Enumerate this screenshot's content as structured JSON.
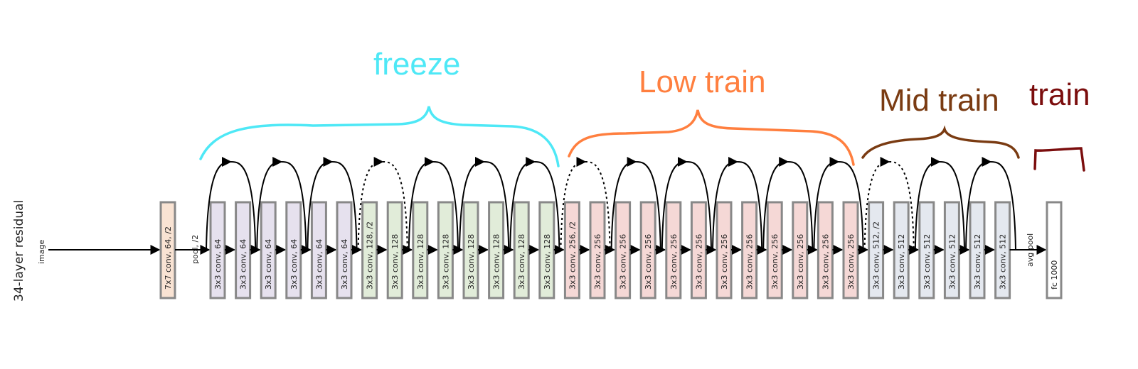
{
  "network_label": "34-layer residual",
  "input_label": "image",
  "pool_label": "pool, /2",
  "avgpool_label": "avg pool",
  "colors": {
    "freeze": "#4ee8f6",
    "low_train": "#ff7f3f",
    "mid_train": "#7a3b12",
    "train": "#7b0d0d",
    "box_first": "#f9e3d3",
    "box_64": "#e6e1ee",
    "box_128": "#e1ecd9",
    "box_256": "#f5d8d6",
    "box_512": "#e4e8ef",
    "box_fc": "#ffffff",
    "box_border": "#888888"
  },
  "groups": [
    {
      "id": "freeze",
      "label": "freeze"
    },
    {
      "id": "low_train",
      "label": "Low train"
    },
    {
      "id": "mid_train",
      "label": "Mid train"
    },
    {
      "id": "train",
      "label": "train"
    }
  ],
  "first_layer": {
    "label": "7x7 conv, 64, /2",
    "color": "box_first"
  },
  "layers": [
    {
      "label": "3x3 conv, 64",
      "color": "box_64"
    },
    {
      "label": "3x3 conv, 64",
      "color": "box_64"
    },
    {
      "label": "3x3 conv, 64",
      "color": "box_64"
    },
    {
      "label": "3x3 conv, 64",
      "color": "box_64"
    },
    {
      "label": "3x3 conv, 64",
      "color": "box_64"
    },
    {
      "label": "3x3 conv, 64",
      "color": "box_64"
    },
    {
      "label": "3x3 conv, 128, /2",
      "color": "box_128"
    },
    {
      "label": "3x3 conv, 128",
      "color": "box_128"
    },
    {
      "label": "3x3 conv, 128",
      "color": "box_128"
    },
    {
      "label": "3x3 conv, 128",
      "color": "box_128"
    },
    {
      "label": "3x3 conv, 128",
      "color": "box_128"
    },
    {
      "label": "3x3 conv, 128",
      "color": "box_128"
    },
    {
      "label": "3x3 conv, 128",
      "color": "box_128"
    },
    {
      "label": "3x3 conv, 128",
      "color": "box_128"
    },
    {
      "label": "3x3 conv, 256, /2",
      "color": "box_256"
    },
    {
      "label": "3x3 conv, 256",
      "color": "box_256"
    },
    {
      "label": "3x3 conv, 256",
      "color": "box_256"
    },
    {
      "label": "3x3 conv, 256",
      "color": "box_256"
    },
    {
      "label": "3x3 conv, 256",
      "color": "box_256"
    },
    {
      "label": "3x3 conv, 256",
      "color": "box_256"
    },
    {
      "label": "3x3 conv, 256",
      "color": "box_256"
    },
    {
      "label": "3x3 conv, 256",
      "color": "box_256"
    },
    {
      "label": "3x3 conv, 256",
      "color": "box_256"
    },
    {
      "label": "3x3 conv, 256",
      "color": "box_256"
    },
    {
      "label": "3x3 conv, 256",
      "color": "box_256"
    },
    {
      "label": "3x3 conv, 256",
      "color": "box_256"
    },
    {
      "label": "3x3 conv, 512, /2",
      "color": "box_512"
    },
    {
      "label": "3x3 conv, 512",
      "color": "box_512"
    },
    {
      "label": "3x3 conv, 512",
      "color": "box_512"
    },
    {
      "label": "3x3 conv, 512",
      "color": "box_512"
    },
    {
      "label": "3x3 conv, 512",
      "color": "box_512"
    },
    {
      "label": "3x3 conv, 512",
      "color": "box_512"
    }
  ],
  "final_layer": {
    "label": "fc 1000",
    "color": "box_fc"
  },
  "skip_connections": [
    {
      "from": 0,
      "dashed": false
    },
    {
      "from": 2,
      "dashed": false
    },
    {
      "from": 4,
      "dashed": false
    },
    {
      "from": 6,
      "dashed": true
    },
    {
      "from": 8,
      "dashed": false
    },
    {
      "from": 10,
      "dashed": false
    },
    {
      "from": 12,
      "dashed": false
    },
    {
      "from": 14,
      "dashed": true
    },
    {
      "from": 16,
      "dashed": false
    },
    {
      "from": 18,
      "dashed": false
    },
    {
      "from": 20,
      "dashed": false
    },
    {
      "from": 22,
      "dashed": false
    },
    {
      "from": 24,
      "dashed": false
    },
    {
      "from": 26,
      "dashed": true
    },
    {
      "from": 28,
      "dashed": false
    },
    {
      "from": 30,
      "dashed": false
    }
  ]
}
